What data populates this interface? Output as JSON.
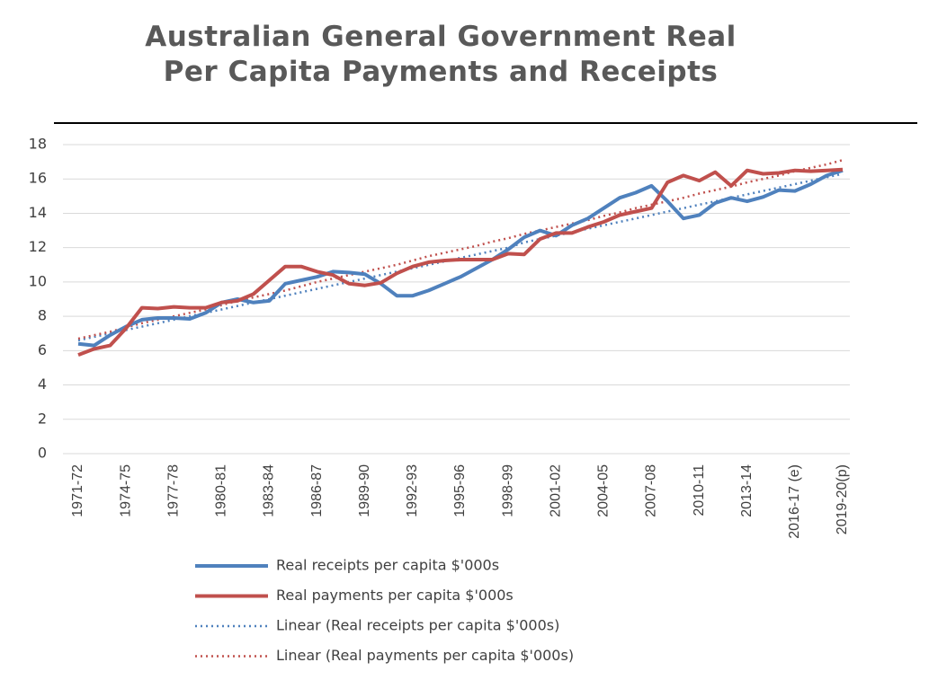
{
  "chart_data": {
    "type": "line",
    "title": "Australian General Government Real Per Capita Payments and Receipts",
    "categories": [
      "1971-72",
      null,
      null,
      "1974-75",
      null,
      null,
      "1977-78",
      null,
      null,
      "1980-81",
      null,
      null,
      "1983-84",
      null,
      null,
      "1986-87",
      null,
      null,
      "1989-90",
      null,
      null,
      "1992-93",
      null,
      null,
      "1995-96",
      null,
      null,
      "1998-99",
      null,
      null,
      "2001-02",
      null,
      null,
      "2004-05",
      null,
      null,
      "2007-08",
      null,
      null,
      "2010-11",
      null,
      null,
      "2013-14",
      null,
      null,
      "2016-17 (e)",
      null,
      null,
      "2019-20(p)"
    ],
    "series": [
      {
        "name": "Real receipts per capita $'000s",
        "color": "#4f81bd",
        "style": "solid",
        "values": [
          6.4,
          6.3,
          6.9,
          7.4,
          7.8,
          7.9,
          7.9,
          7.85,
          8.2,
          8.8,
          9.0,
          8.8,
          8.9,
          9.9,
          10.1,
          10.3,
          10.6,
          10.55,
          10.45,
          9.9,
          9.2,
          9.2,
          9.5,
          9.9,
          10.3,
          10.8,
          11.3,
          11.9,
          12.6,
          13.0,
          12.7,
          13.3,
          13.7,
          14.3,
          14.9,
          15.2,
          15.6,
          14.7,
          13.7,
          13.9,
          14.6,
          14.9,
          14.7,
          14.95,
          15.35,
          15.3,
          15.7,
          16.2,
          16.5
        ]
      },
      {
        "name": "Real payments per capita $'000s",
        "color": "#c0504d",
        "style": "solid",
        "values": [
          5.75,
          6.1,
          6.3,
          7.3,
          8.5,
          8.45,
          8.55,
          8.5,
          8.5,
          8.8,
          8.9,
          9.3,
          10.1,
          10.9,
          10.9,
          10.6,
          10.4,
          9.9,
          9.8,
          9.95,
          10.5,
          10.9,
          11.15,
          11.25,
          11.3,
          11.3,
          11.3,
          11.65,
          11.6,
          12.5,
          12.85,
          12.85,
          13.2,
          13.5,
          13.9,
          14.1,
          14.3,
          15.8,
          16.2,
          15.9,
          16.4,
          15.6,
          16.5,
          16.3,
          16.35,
          16.5,
          16.45,
          16.5,
          16.55
        ]
      },
      {
        "name": "Linear (Real receipts per capita $'000s)",
        "color": "#4f81bd",
        "style": "dotted",
        "values": [
          6.6,
          6.8,
          7.0,
          7.2,
          7.4,
          7.6,
          7.8,
          8.0,
          8.2,
          8.4,
          8.6,
          8.8,
          9.0,
          9.2,
          9.4,
          9.6,
          9.8,
          10.0,
          10.2,
          10.4,
          10.6,
          10.8,
          11.0,
          11.2,
          11.4,
          11.6,
          11.8,
          12.0,
          12.3,
          12.5,
          12.7,
          12.9,
          13.1,
          13.3,
          13.5,
          13.7,
          13.9,
          14.1,
          14.3,
          14.5,
          14.7,
          14.9,
          15.1,
          15.3,
          15.5,
          15.7,
          15.9,
          16.1,
          16.3
        ]
      },
      {
        "name": "Linear (Real payments per capita $'000s)",
        "color": "#c0504d",
        "style": "dotted",
        "values": [
          6.7,
          6.9,
          7.1,
          7.35,
          7.6,
          7.8,
          8.0,
          8.2,
          8.4,
          8.65,
          8.9,
          9.1,
          9.3,
          9.5,
          9.75,
          10.0,
          10.2,
          10.4,
          10.6,
          10.8,
          11.0,
          11.25,
          11.5,
          11.7,
          11.9,
          12.1,
          12.35,
          12.55,
          12.8,
          13.0,
          13.2,
          13.4,
          13.6,
          13.85,
          14.05,
          14.3,
          14.5,
          14.7,
          14.9,
          15.15,
          15.35,
          15.55,
          15.8,
          16.0,
          16.2,
          16.45,
          16.65,
          16.85,
          17.1
        ]
      }
    ],
    "ylim": [
      0,
      18
    ],
    "yticks": [
      0,
      2,
      4,
      6,
      8,
      10,
      12,
      14,
      16,
      18
    ],
    "grid": true,
    "legend": "bottom"
  }
}
